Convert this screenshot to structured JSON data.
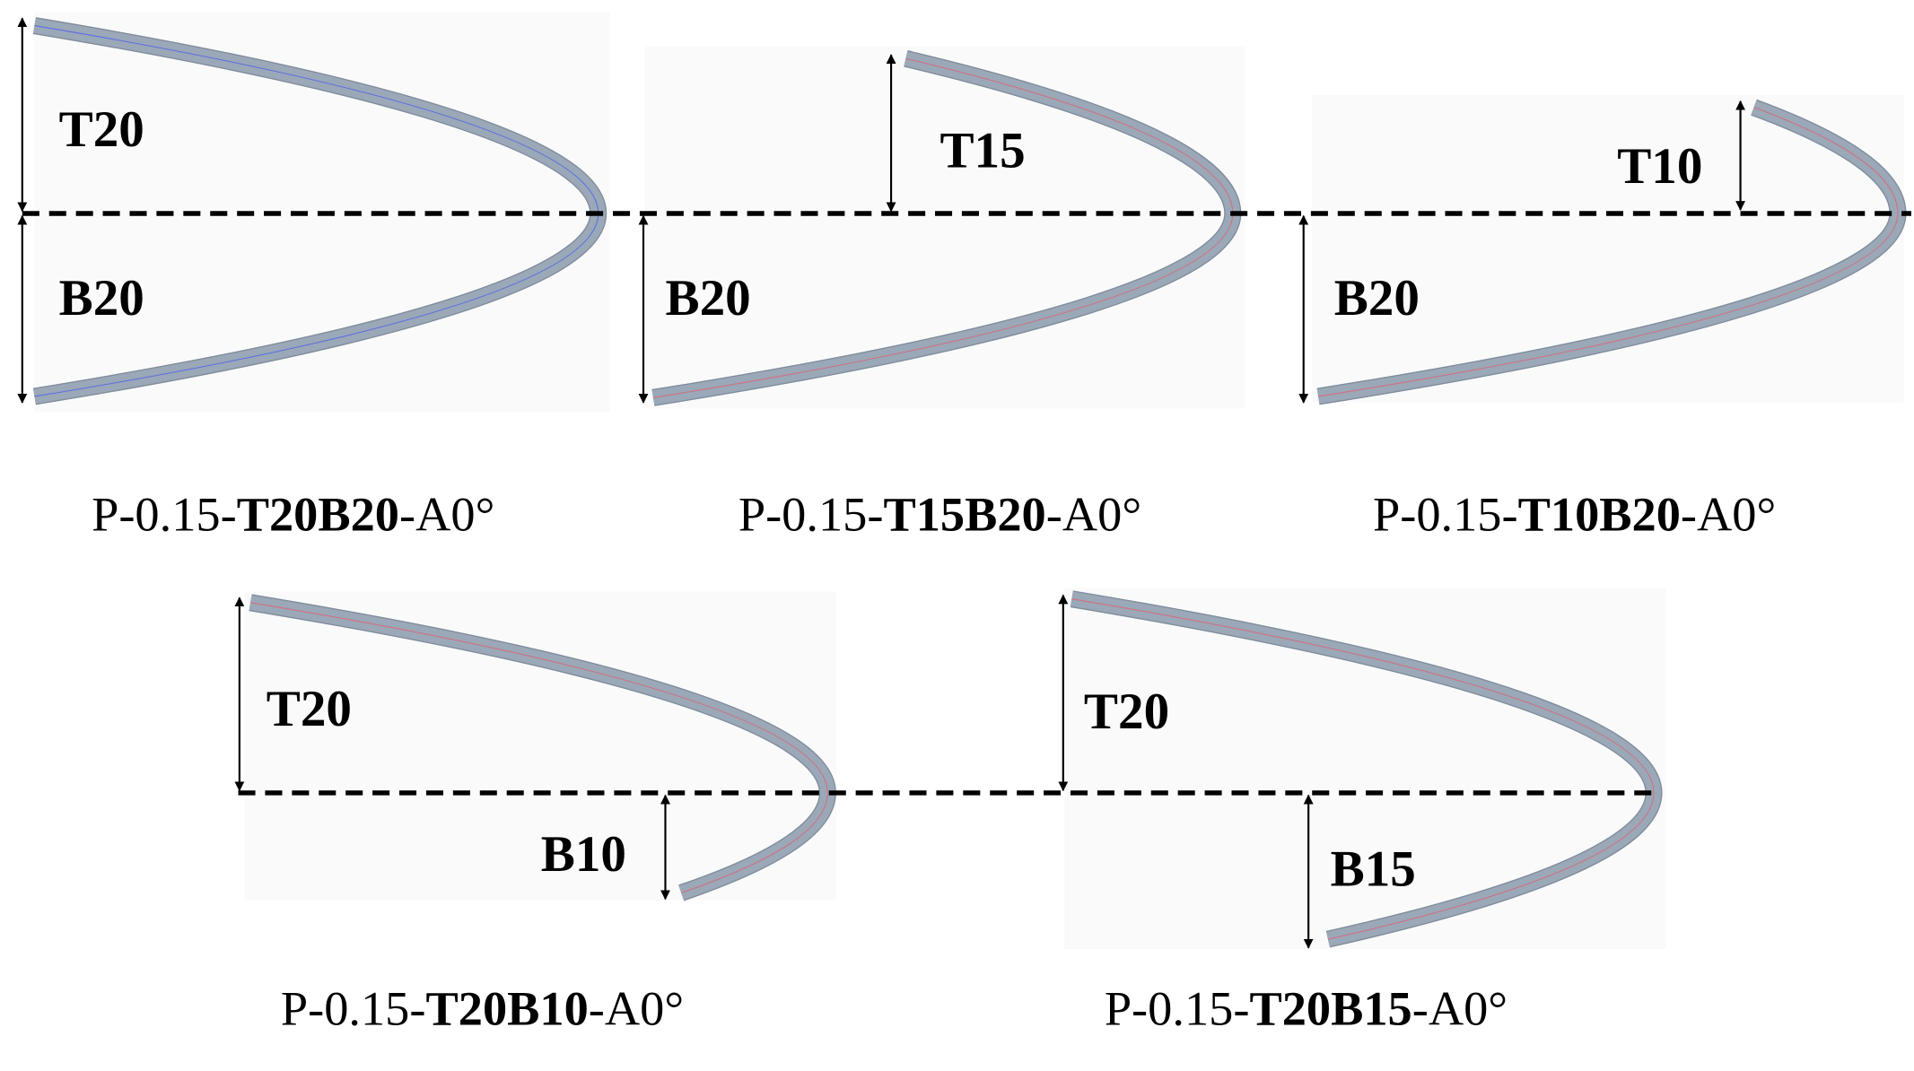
{
  "colors": {
    "bar_fill": "#9aa8b8",
    "bar_edge": "#7f8c9c",
    "background_panel": "#fafafa",
    "centerline_blue": "#5a6fe0",
    "centerline_red": "#d07080"
  },
  "panels": [
    {
      "top_label": "T20",
      "bottom_label": "B20",
      "caption": {
        "prefix": "P-0.15-",
        "bold": "T20B20",
        "suffix": "-A0°"
      }
    },
    {
      "top_label": "T15",
      "bottom_label": "B20",
      "caption": {
        "prefix": "P-0.15-",
        "bold": "T15B20",
        "suffix": "-A0°"
      }
    },
    {
      "top_label": "T10",
      "bottom_label": "B20",
      "caption": {
        "prefix": "P-0.15-",
        "bold": "T10B20",
        "suffix": "-A0°"
      }
    },
    {
      "top_label": "T20",
      "bottom_label": "B10",
      "caption": {
        "prefix": "P-0.15-",
        "bold": "T20B10",
        "suffix": "-A0°"
      }
    },
    {
      "top_label": "T20",
      "bottom_label": "B15",
      "caption": {
        "prefix": "P-0.15-",
        "bold": "T20B15",
        "suffix": "-A0°"
      }
    }
  ]
}
